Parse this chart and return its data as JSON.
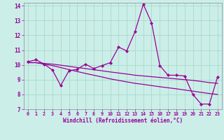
{
  "xlabel": "Windchill (Refroidissement éolien,°C)",
  "bg_color": "#cceee8",
  "grid_color": "#aaddcc",
  "line_color": "#990099",
  "xlim": [
    -0.5,
    23.5
  ],
  "ylim": [
    7,
    14.2
  ],
  "xticks": [
    0,
    1,
    2,
    3,
    4,
    5,
    6,
    7,
    8,
    9,
    10,
    11,
    12,
    13,
    14,
    15,
    16,
    17,
    18,
    19,
    20,
    21,
    22,
    23
  ],
  "yticks": [
    7,
    8,
    9,
    10,
    11,
    12,
    13,
    14
  ],
  "series1_x": [
    0,
    1,
    2,
    3,
    4,
    5,
    6,
    7,
    8,
    9,
    10,
    11,
    12,
    13,
    14,
    15,
    16,
    17,
    18,
    19,
    20,
    21,
    22,
    23
  ],
  "series1_y": [
    10.2,
    10.35,
    10.05,
    9.65,
    8.6,
    9.6,
    9.7,
    10.05,
    9.75,
    9.95,
    10.15,
    11.2,
    10.95,
    12.25,
    14.1,
    12.85,
    9.95,
    9.3,
    9.3,
    9.25,
    8.0,
    7.35,
    7.35,
    9.2
  ],
  "series2_x": [
    0,
    1,
    2,
    3,
    4,
    5,
    6,
    7,
    8,
    9,
    10,
    11,
    12,
    13,
    14,
    15,
    16,
    17,
    18,
    19,
    20,
    21,
    22,
    23
  ],
  "series2_y": [
    10.15,
    10.15,
    10.05,
    9.95,
    9.82,
    9.68,
    9.55,
    9.42,
    9.3,
    9.18,
    9.05,
    8.95,
    8.85,
    8.75,
    8.68,
    8.6,
    8.52,
    8.45,
    8.38,
    8.3,
    8.22,
    8.14,
    8.06,
    8.0
  ],
  "series3_x": [
    0,
    1,
    2,
    3,
    4,
    5,
    6,
    7,
    8,
    9,
    10,
    11,
    12,
    13,
    14,
    15,
    16,
    17,
    18,
    19,
    20,
    21,
    22,
    23
  ],
  "series3_y": [
    10.15,
    10.15,
    10.1,
    10.05,
    9.98,
    9.9,
    9.82,
    9.75,
    9.67,
    9.6,
    9.52,
    9.45,
    9.38,
    9.3,
    9.25,
    9.2,
    9.15,
    9.1,
    9.05,
    9.0,
    8.95,
    8.88,
    8.8,
    8.75
  ]
}
